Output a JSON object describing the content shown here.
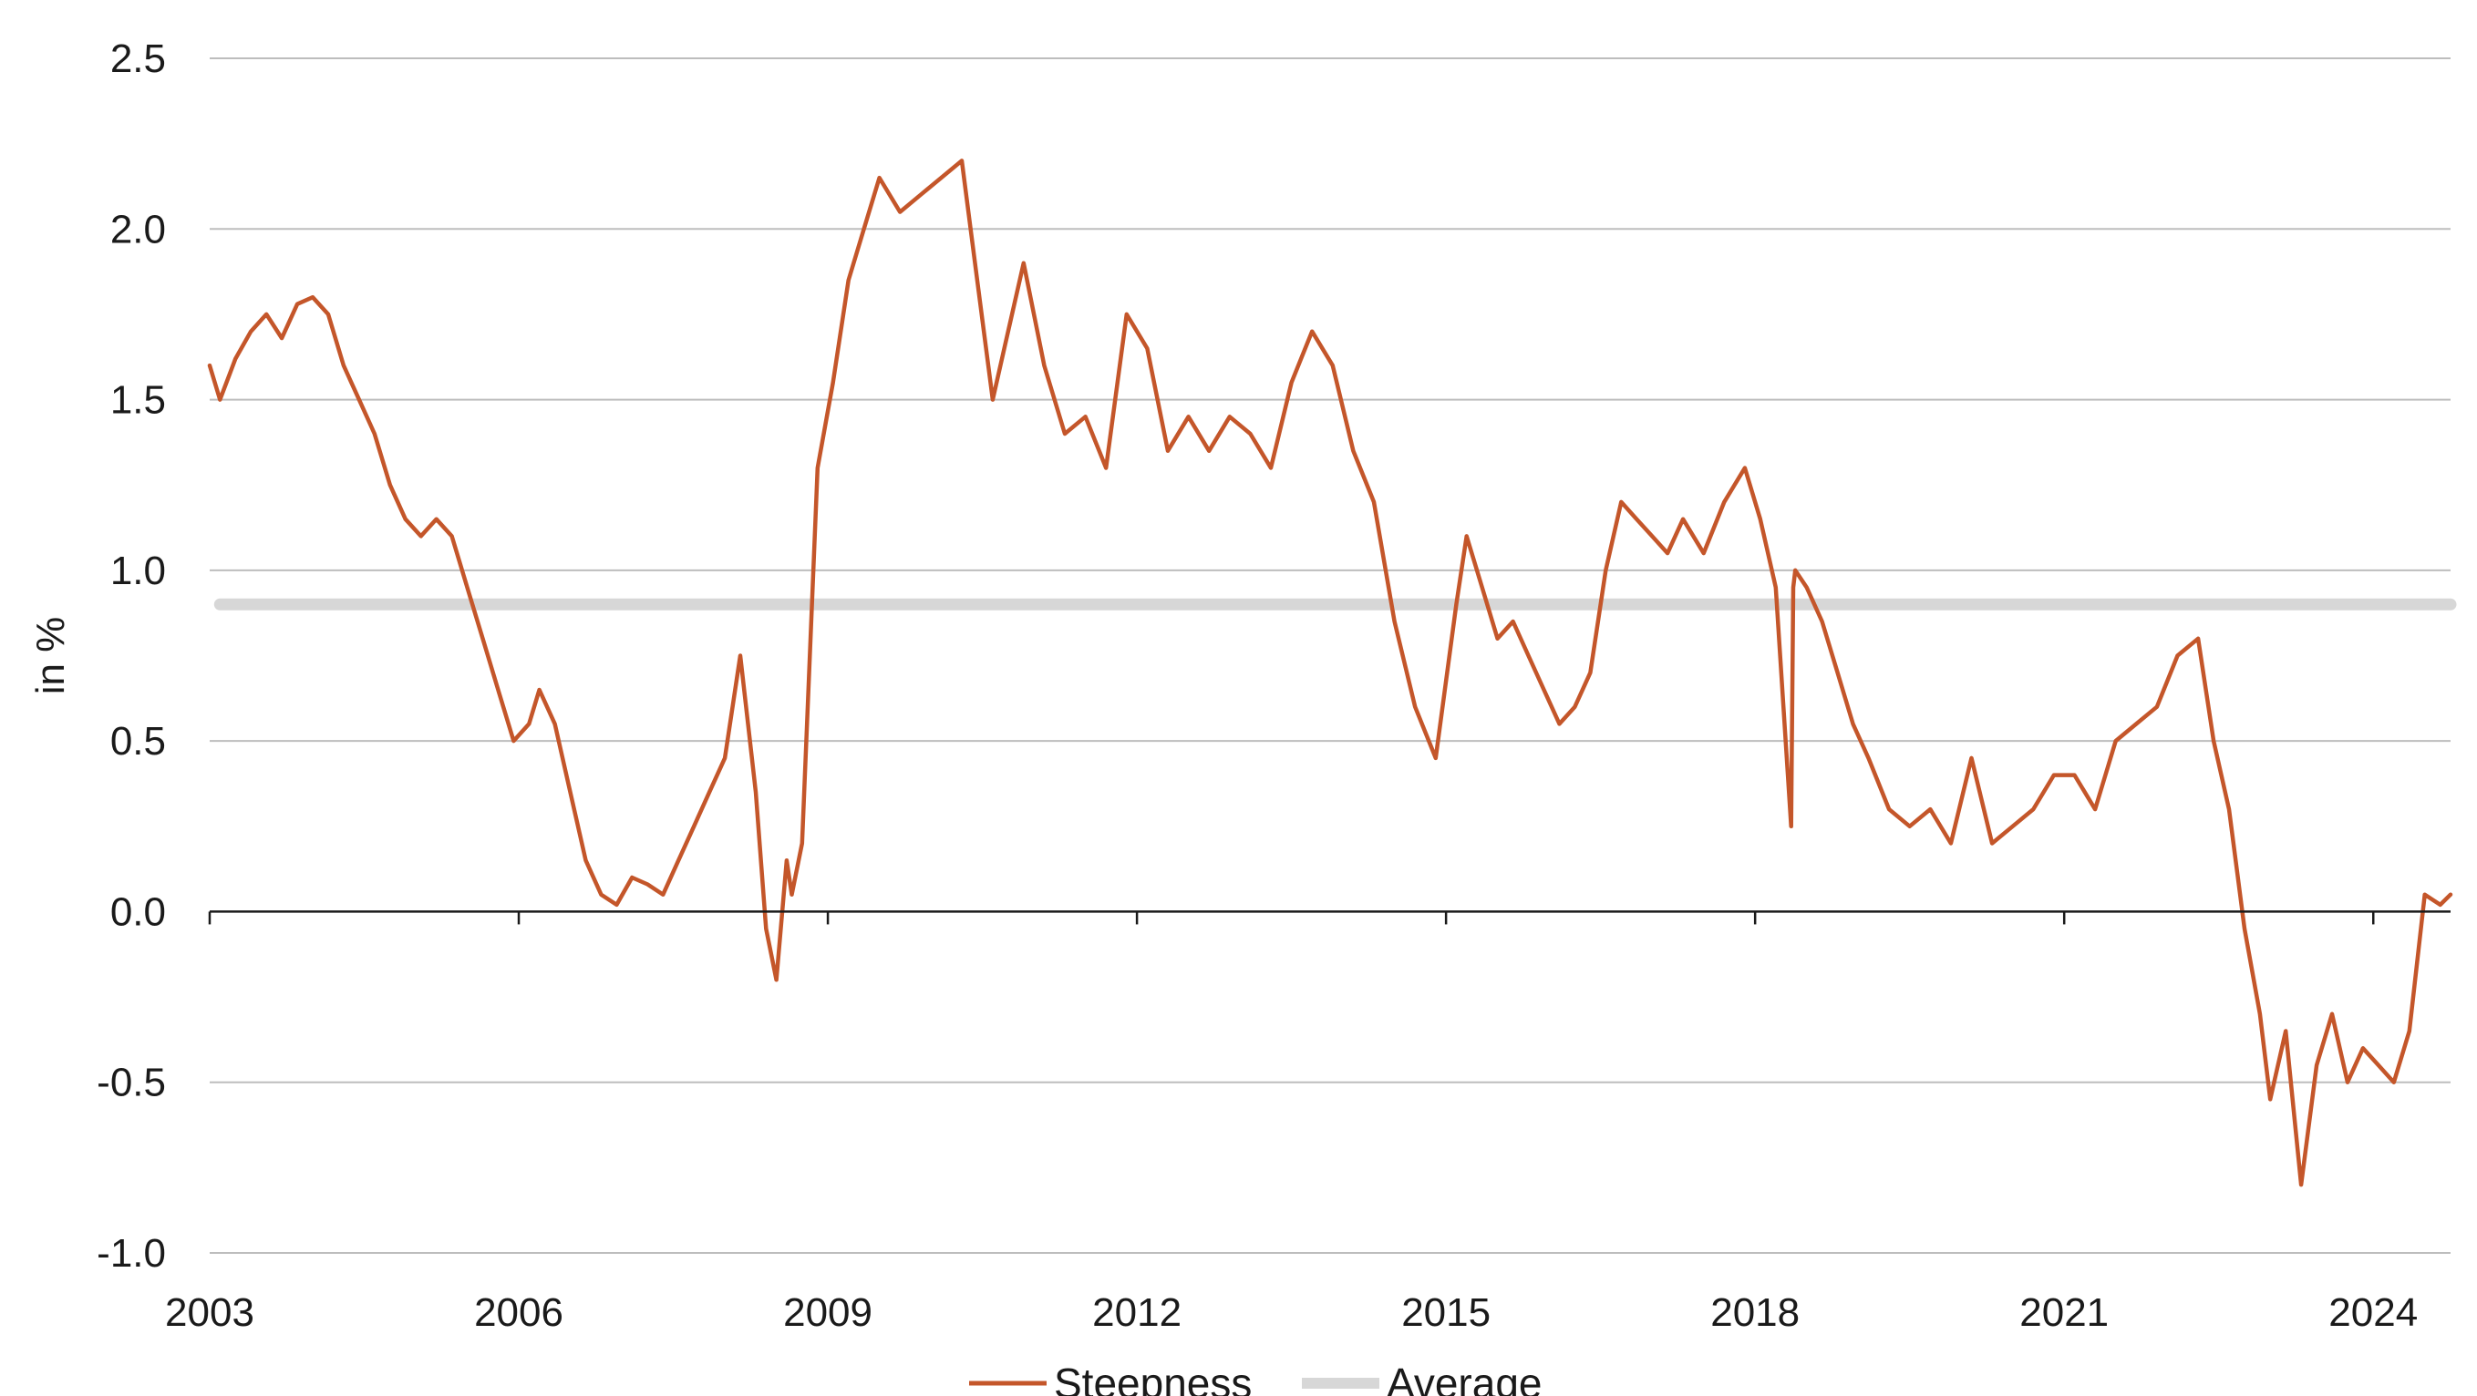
{
  "chart_data": {
    "type": "line",
    "title": "",
    "xlabel": "",
    "ylabel": "in %",
    "xlim": [
      2003.0,
      2024.75
    ],
    "ylim": [
      -1.0,
      2.5
    ],
    "x_ticks": [
      2003,
      2006,
      2009,
      2012,
      2015,
      2018,
      2021,
      2024
    ],
    "x_tick_labels": [
      "2003",
      "2006",
      "2009",
      "2012",
      "2015",
      "2018",
      "2021",
      "2024"
    ],
    "y_ticks": [
      -1.0,
      -0.5,
      0.0,
      0.5,
      1.0,
      1.5,
      2.0,
      2.5
    ],
    "y_tick_labels": [
      "-1.0",
      "-0.5",
      "0.0",
      "0.5",
      "1.0",
      "1.5",
      "2.0",
      "2.5"
    ],
    "grid": "horizontal",
    "legend_position": "bottom-center",
    "series": [
      {
        "name": "Steepness",
        "color": "#c4562a",
        "x": [
          2003.0,
          2003.1,
          2003.25,
          2003.4,
          2003.55,
          2003.7,
          2003.85,
          2004.0,
          2004.15,
          2004.3,
          2004.45,
          2004.6,
          2004.75,
          2004.9,
          2005.05,
          2005.2,
          2005.35,
          2005.5,
          2005.65,
          2005.8,
          2005.95,
          2006.1,
          2006.2,
          2006.35,
          2006.5,
          2006.65,
          2006.8,
          2006.95,
          2007.1,
          2007.25,
          2007.4,
          2007.55,
          2007.7,
          2007.85,
          2008.0,
          2008.15,
          2008.3,
          2008.4,
          2008.5,
          2008.6,
          2008.65,
          2008.75,
          2008.9,
          2009.05,
          2009.2,
          2009.35,
          2009.5,
          2009.7,
          2009.9,
          2010.1,
          2010.3,
          2010.45,
          2010.6,
          2010.75,
          2010.9,
          2011.1,
          2011.3,
          2011.5,
          2011.7,
          2011.9,
          2012.1,
          2012.3,
          2012.5,
          2012.7,
          2012.9,
          2013.1,
          2013.3,
          2013.5,
          2013.7,
          2013.9,
          2014.1,
          2014.3,
          2014.5,
          2014.7,
          2014.9,
          2015.1,
          2015.2,
          2015.35,
          2015.5,
          2015.65,
          2015.8,
          2015.95,
          2016.1,
          2016.25,
          2016.4,
          2016.55,
          2016.7,
          2016.85,
          2017.0,
          2017.15,
          2017.3,
          2017.5,
          2017.7,
          2017.9,
          2018.05,
          2018.2,
          2018.35,
          2018.37,
          2018.39,
          2018.5,
          2018.65,
          2018.8,
          2018.95,
          2019.1,
          2019.3,
          2019.5,
          2019.7,
          2019.9,
          2020.1,
          2020.3,
          2020.5,
          2020.7,
          2020.9,
          2021.1,
          2021.3,
          2021.5,
          2021.7,
          2021.9,
          2022.1,
          2022.3,
          2022.45,
          2022.6,
          2022.75,
          2022.9,
          2023.0,
          2023.15,
          2023.3,
          2023.45,
          2023.6,
          2023.75,
          2023.9,
          2024.05,
          2024.2,
          2024.35,
          2024.5,
          2024.65,
          2024.75
        ],
        "values": [
          1.6,
          1.5,
          1.62,
          1.7,
          1.75,
          1.68,
          1.78,
          1.8,
          1.75,
          1.6,
          1.5,
          1.4,
          1.25,
          1.15,
          1.1,
          1.15,
          1.1,
          0.95,
          0.8,
          0.65,
          0.5,
          0.55,
          0.65,
          0.55,
          0.35,
          0.15,
          0.05,
          0.02,
          0.1,
          0.08,
          0.05,
          0.15,
          0.25,
          0.35,
          0.45,
          0.75,
          0.35,
          -0.05,
          -0.2,
          0.15,
          0.05,
          0.2,
          1.3,
          1.55,
          1.85,
          2.0,
          2.15,
          2.05,
          2.1,
          2.15,
          2.2,
          1.85,
          1.5,
          1.7,
          1.9,
          1.6,
          1.4,
          1.45,
          1.3,
          1.75,
          1.65,
          1.35,
          1.45,
          1.35,
          1.45,
          1.4,
          1.3,
          1.55,
          1.7,
          1.6,
          1.35,
          1.2,
          0.85,
          0.6,
          0.45,
          0.9,
          1.1,
          0.95,
          0.8,
          0.85,
          0.75,
          0.65,
          0.55,
          0.6,
          0.7,
          1.0,
          1.2,
          1.15,
          1.1,
          1.05,
          1.15,
          1.05,
          1.2,
          1.3,
          1.15,
          0.95,
          0.25,
          0.95,
          1.0,
          0.95,
          0.85,
          0.7,
          0.55,
          0.45,
          0.3,
          0.25,
          0.3,
          0.2,
          0.45,
          0.2,
          0.25,
          0.3,
          0.4,
          0.4,
          0.3,
          0.5,
          0.55,
          0.6,
          0.75,
          0.8,
          0.5,
          0.3,
          -0.05,
          -0.3,
          -0.55,
          -0.35,
          -0.8,
          -0.45,
          -0.3,
          -0.5,
          -0.4,
          -0.45,
          -0.5,
          -0.35,
          0.05,
          0.02,
          0.05
        ]
      },
      {
        "name": "Average",
        "color": "#d7d7d7",
        "x": [
          2003.1,
          2024.75
        ],
        "values": [
          0.9,
          0.9
        ]
      }
    ]
  }
}
